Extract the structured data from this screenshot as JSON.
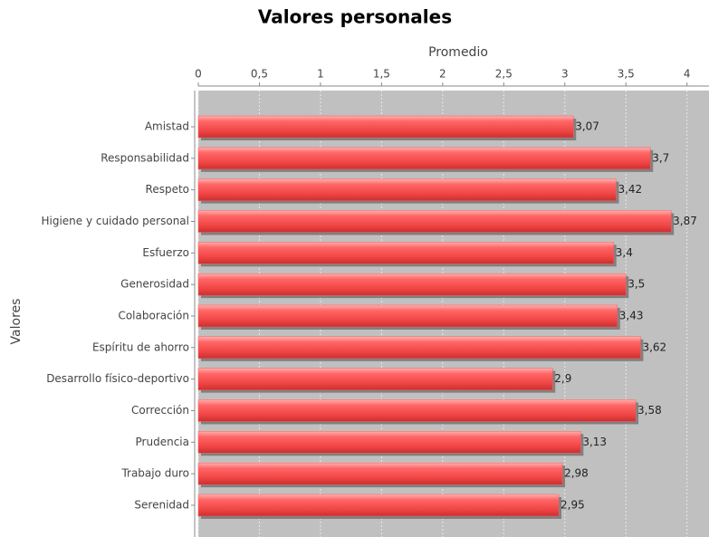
{
  "chart_data": {
    "type": "hbar",
    "title": "Valores personales",
    "x_label": "Promedio",
    "y_label": "Valores",
    "categories": [
      "Amistad",
      "Responsabilidad",
      "Respeto",
      "Higiene y cuidado personal",
      "Esfuerzo",
      "Generosidad",
      "Colaboración",
      "Espíritu de ahorro",
      "Desarrollo físico-deportivo",
      "Corrección",
      "Prudencia",
      "Trabajo duro",
      "Serenidad"
    ],
    "values": [
      3.07,
      3.7,
      3.42,
      3.87,
      3.4,
      3.5,
      3.43,
      3.62,
      2.9,
      3.58,
      3.13,
      2.98,
      2.95
    ],
    "value_labels": [
      "3,07",
      "3,7",
      "3,42",
      "3,87",
      "3,4",
      "3,5",
      "3,43",
      "3,62",
      "2,9",
      "3,58",
      "3,13",
      "2,98",
      "2,95"
    ],
    "color": "#ff5b5b",
    "xlim": [
      0,
      4.18
    ],
    "xticks": [
      0,
      {
        "value": 0.5,
        "label": "0,5"
      },
      1,
      {
        "value": 1.5,
        "label": "1,5"
      },
      2,
      {
        "value": 2.5,
        "label": "2,5"
      },
      3,
      {
        "value": 3.5,
        "label": "3,5"
      },
      4
    ],
    "grid": true
  }
}
